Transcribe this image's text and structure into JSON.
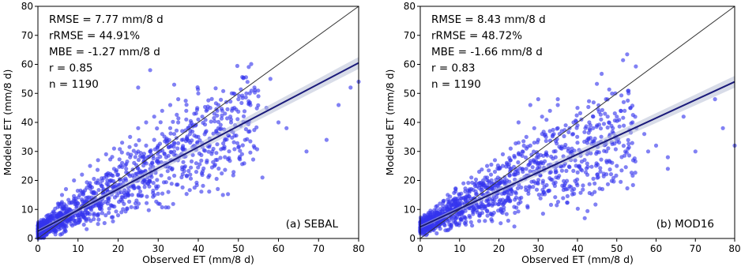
{
  "chart_data": [
    {
      "type": "scatter",
      "panel_label": "(a) SEBAL",
      "xlabel": "Observed ET (mm/8 d)",
      "ylabel": "Modeled ET (mm/8 d)",
      "xlim": [
        0,
        80
      ],
      "ylim": [
        0,
        80
      ],
      "xticks": [
        0,
        10,
        20,
        30,
        40,
        50,
        60,
        70,
        80
      ],
      "yticks": [
        0,
        10,
        20,
        30,
        40,
        50,
        60,
        70,
        80
      ],
      "stats": [
        "RMSE = 7.77 mm/8 d",
        "rRMSE = 44.91%",
        "MBE = -1.27 mm/8 d",
        "r = 0.85",
        "n = 1190"
      ],
      "one_to_one_line": true,
      "regression": {
        "intercept": 2.5,
        "slope": 0.725
      },
      "point_color": "#3333ee",
      "line_color": "#1a1a7a",
      "grid": false,
      "series": [
        {
          "points": [
            [
              1,
              1
            ],
            [
              1,
              3
            ],
            [
              2,
              2
            ],
            [
              2,
              5
            ],
            [
              3,
              4
            ],
            [
              3,
              7
            ],
            [
              4,
              3
            ],
            [
              4,
              9
            ],
            [
              5,
              6
            ],
            [
              5,
              12
            ],
            [
              6,
              5
            ],
            [
              6,
              15
            ],
            [
              7,
              8
            ],
            [
              7,
              17
            ],
            [
              8,
              10
            ],
            [
              8,
              6
            ],
            [
              9,
              13
            ],
            [
              9,
              20
            ],
            [
              10,
              12
            ],
            [
              10,
              8
            ],
            [
              11,
              16
            ],
            [
              11,
              22
            ],
            [
              12,
              14
            ],
            [
              12,
              10
            ],
            [
              13,
              18
            ],
            [
              13,
              25
            ],
            [
              14,
              16
            ],
            [
              14,
              12
            ],
            [
              15,
              20
            ],
            [
              15,
              27
            ],
            [
              16,
              18
            ],
            [
              16,
              14
            ],
            [
              17,
              22
            ],
            [
              17,
              29
            ],
            [
              18,
              20
            ],
            [
              18,
              16
            ],
            [
              19,
              24
            ],
            [
              19,
              31
            ],
            [
              20,
              22
            ],
            [
              20,
              18
            ],
            [
              21,
              26
            ],
            [
              21,
              33
            ],
            [
              22,
              24
            ],
            [
              22,
              20
            ],
            [
              23,
              28
            ],
            [
              23,
              35
            ],
            [
              24,
              26
            ],
            [
              24,
              21
            ],
            [
              25,
              30
            ],
            [
              25,
              38
            ],
            [
              26,
              28
            ],
            [
              26,
              23
            ],
            [
              27,
              32
            ],
            [
              27,
              40
            ],
            [
              28,
              30
            ],
            [
              28,
              24
            ],
            [
              29,
              34
            ],
            [
              29,
              42
            ],
            [
              30,
              32
            ],
            [
              30,
              26
            ],
            [
              31,
              36
            ],
            [
              31,
              44
            ],
            [
              32,
              34
            ],
            [
              32,
              28
            ],
            [
              33,
              38
            ],
            [
              33,
              46
            ],
            [
              34,
              36
            ],
            [
              34,
              30
            ],
            [
              35,
              40
            ],
            [
              35,
              48
            ],
            [
              36,
              37
            ],
            [
              36,
              31
            ],
            [
              37,
              41
            ],
            [
              37,
              44
            ],
            [
              38,
              39
            ],
            [
              38,
              33
            ],
            [
              39,
              43
            ],
            [
              40,
              41
            ],
            [
              40,
              35
            ],
            [
              41,
              42
            ],
            [
              42,
              44
            ],
            [
              42,
              37
            ],
            [
              43,
              45
            ],
            [
              44,
              43
            ],
            [
              45,
              46
            ],
            [
              45,
              38
            ],
            [
              46,
              44
            ],
            [
              47,
              47
            ],
            [
              48,
              42
            ],
            [
              49,
              45
            ],
            [
              50,
              48
            ],
            [
              52,
              50
            ],
            [
              53,
              46
            ],
            [
              54,
              52
            ],
            [
              55,
              49
            ],
            [
              57,
              45
            ],
            [
              58,
              55
            ],
            [
              28,
              58
            ],
            [
              34,
              53
            ],
            [
              25,
              52
            ],
            [
              40,
              50
            ],
            [
              60,
              40
            ],
            [
              62,
              38
            ],
            [
              67,
              30
            ],
            [
              72,
              34
            ],
            [
              75,
              46
            ],
            [
              78,
              52
            ],
            [
              80,
              54
            ],
            [
              56,
              21
            ],
            [
              44,
              25
            ],
            [
              38,
              22
            ],
            [
              30,
              12
            ],
            [
              20,
              8
            ],
            [
              15,
              5
            ]
          ]
        }
      ]
    },
    {
      "type": "scatter",
      "panel_label": "(b) MOD16",
      "xlabel": "Observed ET (mm/8 d)",
      "ylabel": "Modeled ET (mm/8 d)",
      "xlim": [
        0,
        80
      ],
      "ylim": [
        0,
        80
      ],
      "xticks": [
        0,
        10,
        20,
        30,
        40,
        50,
        60,
        70,
        80
      ],
      "yticks": [
        0,
        10,
        20,
        30,
        40,
        50,
        60,
        70,
        80
      ],
      "stats": [
        "RMSE = 8.43 mm/8 d",
        "rRMSE = 48.72%",
        "MBE = -1.66 mm/8 d",
        "r = 0.83",
        "n = 1190"
      ],
      "one_to_one_line": true,
      "regression": {
        "intercept": 4.0,
        "slope": 0.625
      },
      "point_color": "#3333ee",
      "line_color": "#1a1a7a",
      "grid": false,
      "series": [
        {
          "points": [
            [
              1,
              2
            ],
            [
              1,
              5
            ],
            [
              2,
              3
            ],
            [
              2,
              7
            ],
            [
              3,
              4
            ],
            [
              3,
              9
            ],
            [
              4,
              6
            ],
            [
              4,
              11
            ],
            [
              5,
              7
            ],
            [
              5,
              12
            ],
            [
              6,
              8
            ],
            [
              6,
              13
            ],
            [
              7,
              9
            ],
            [
              7,
              15
            ],
            [
              8,
              10
            ],
            [
              8,
              7
            ],
            [
              9,
              12
            ],
            [
              9,
              17
            ],
            [
              10,
              13
            ],
            [
              10,
              9
            ],
            [
              11,
              14
            ],
            [
              11,
              19
            ],
            [
              12,
              15
            ],
            [
              12,
              11
            ],
            [
              13,
              17
            ],
            [
              13,
              21
            ],
            [
              14,
              18
            ],
            [
              14,
              13
            ],
            [
              15,
              19
            ],
            [
              15,
              23
            ],
            [
              16,
              20
            ],
            [
              16,
              15
            ],
            [
              17,
              21
            ],
            [
              17,
              25
            ],
            [
              18,
              22
            ],
            [
              18,
              17
            ],
            [
              19,
              23
            ],
            [
              19,
              27
            ],
            [
              20,
              24
            ],
            [
              20,
              19
            ],
            [
              21,
              25
            ],
            [
              21,
              29
            ],
            [
              22,
              26
            ],
            [
              22,
              20
            ],
            [
              23,
              27
            ],
            [
              23,
              31
            ],
            [
              24,
              28
            ],
            [
              24,
              22
            ],
            [
              25,
              29
            ],
            [
              25,
              33
            ],
            [
              26,
              30
            ],
            [
              26,
              24
            ],
            [
              27,
              31
            ],
            [
              27,
              35
            ],
            [
              28,
              32
            ],
            [
              28,
              26
            ],
            [
              29,
              33
            ],
            [
              29,
              38
            ],
            [
              30,
              34
            ],
            [
              30,
              28
            ],
            [
              31,
              36
            ],
            [
              31,
              42
            ],
            [
              32,
              35
            ],
            [
              32,
              29
            ],
            [
              33,
              37
            ],
            [
              33,
              44
            ],
            [
              34,
              36
            ],
            [
              34,
              30
            ],
            [
              35,
              38
            ],
            [
              35,
              46
            ],
            [
              36,
              37
            ],
            [
              36,
              31
            ],
            [
              37,
              39
            ],
            [
              38,
              38
            ],
            [
              39,
              40
            ],
            [
              40,
              39
            ],
            [
              40,
              33
            ],
            [
              41,
              41
            ],
            [
              42,
              38
            ],
            [
              43,
              40
            ],
            [
              44,
              42
            ],
            [
              45,
              39
            ],
            [
              46,
              41
            ],
            [
              47,
              43
            ],
            [
              48,
              40
            ],
            [
              49,
              38
            ],
            [
              50,
              42
            ],
            [
              52,
              44
            ],
            [
              54,
              40
            ],
            [
              55,
              38
            ],
            [
              57,
              36
            ],
            [
              58,
              30
            ],
            [
              60,
              32
            ],
            [
              63,
              28
            ],
            [
              67,
              42
            ],
            [
              30,
              48
            ],
            [
              28,
              46
            ],
            [
              35,
              48
            ],
            [
              40,
              45
            ],
            [
              25,
              40
            ],
            [
              70,
              30
            ],
            [
              75,
              48
            ],
            [
              77,
              38
            ],
            [
              80,
              32
            ],
            [
              63,
              24
            ],
            [
              50,
              25
            ],
            [
              45,
              22
            ],
            [
              38,
              18
            ],
            [
              25,
              12
            ],
            [
              15,
              6
            ]
          ]
        }
      ]
    }
  ]
}
